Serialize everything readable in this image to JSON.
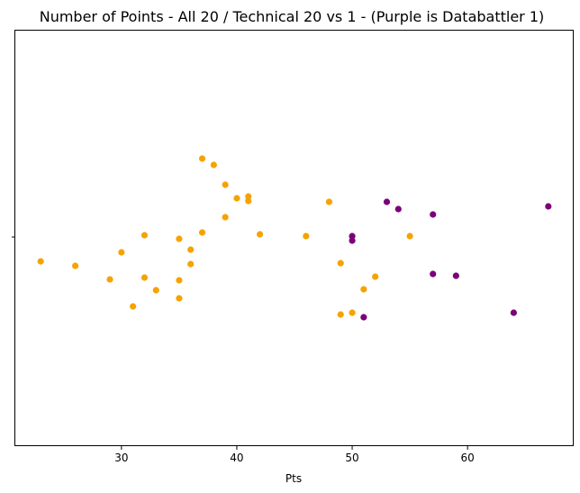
{
  "chart_data": {
    "type": "scatter",
    "title": "Number of Points - All 20 / Technical 20 vs 1 - (Purple is Databattler 1)",
    "xlabel": "Pts",
    "ylabel": "",
    "xlim": [
      20.8,
      69.2
    ],
    "x_ticks": [
      30,
      40,
      50,
      60
    ],
    "y_ticks": [
      ""
    ],
    "grid": false,
    "legend": "none",
    "series": [
      {
        "color": "#f5a300",
        "values": [
          23,
          26,
          29,
          30,
          31,
          32,
          32,
          33,
          35,
          35,
          35,
          36,
          36,
          37,
          37,
          38,
          39,
          39,
          40,
          41,
          41,
          42,
          46,
          48,
          49,
          49,
          50,
          51,
          52,
          55
        ]
      },
      {
        "color": "#7b0079",
        "values": [
          50,
          50,
          51,
          53,
          54,
          57,
          57,
          59,
          64,
          67
        ]
      }
    ]
  }
}
